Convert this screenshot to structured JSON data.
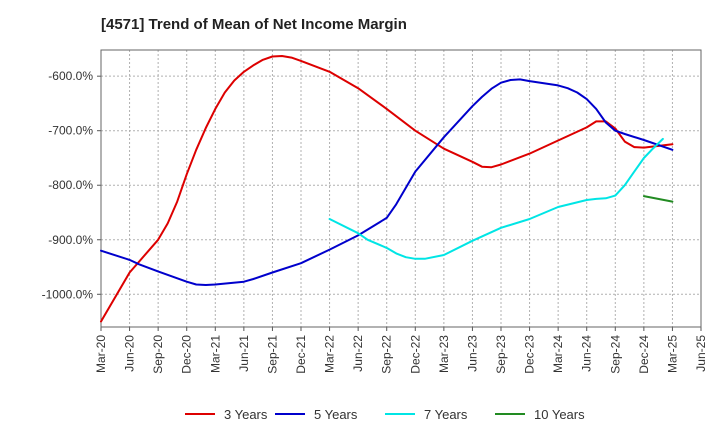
{
  "header": {
    "title": "[4571]  Trend of Mean of Net Income Margin"
  },
  "chart_data": {
    "type": "line",
    "title": "[4571]  Trend of Mean of Net Income Margin",
    "xlabel": "",
    "ylabel": "",
    "x_ticks": [
      "Mar-20",
      "Jun-20",
      "Sep-20",
      "Dec-20",
      "Mar-21",
      "Jun-21",
      "Sep-21",
      "Dec-21",
      "Mar-22",
      "Jun-22",
      "Sep-22",
      "Dec-22",
      "Mar-23",
      "Jun-23",
      "Sep-23",
      "Dec-23",
      "Mar-24",
      "Jun-24",
      "Sep-24",
      "Dec-24",
      "Mar-25",
      "Jun-25"
    ],
    "y_ticks": [
      -600,
      -700,
      -800,
      -900,
      -1000
    ],
    "y_tick_labels": [
      "-600.0%",
      "-700.0%",
      "-800.0%",
      "-900.0%",
      "-1000.0%"
    ],
    "ylim": [
      -1060,
      -552
    ],
    "grid": true,
    "legend_position": "bottom",
    "series": [
      {
        "name": "3 Years",
        "color": "#dd0000",
        "points": [
          [
            "Mar-20",
            -1050
          ],
          [
            "Jun-20",
            -960
          ],
          [
            "Jul-20",
            -940
          ],
          [
            "Sep-20",
            -900
          ],
          [
            "Oct-20",
            -870
          ],
          [
            "Nov-20",
            -830
          ],
          [
            "Dec-20",
            -780
          ],
          [
            "Jan-21",
            -735
          ],
          [
            "Feb-21",
            -695
          ],
          [
            "Mar-21",
            -660
          ],
          [
            "Apr-21",
            -630
          ],
          [
            "May-21",
            -608
          ],
          [
            "Jun-21",
            -592
          ],
          [
            "Jul-21",
            -580
          ],
          [
            "Aug-21",
            -570
          ],
          [
            "Sep-21",
            -564
          ],
          [
            "Oct-21",
            -563
          ],
          [
            "Nov-21",
            -566
          ],
          [
            "Dec-21",
            -572
          ],
          [
            "Mar-22",
            -592
          ],
          [
            "Jun-22",
            -622
          ],
          [
            "Sep-22",
            -660
          ],
          [
            "Dec-22",
            -700
          ],
          [
            "Mar-23",
            -733
          ],
          [
            "Jun-23",
            -757
          ],
          [
            "Jul-23",
            -766
          ],
          [
            "Aug-23",
            -767
          ],
          [
            "Sep-23",
            -762
          ],
          [
            "Dec-23",
            -742
          ],
          [
            "Mar-24",
            -718
          ],
          [
            "Jun-24",
            -694
          ],
          [
            "Jul-24",
            -683
          ],
          [
            "Aug-24",
            -683
          ],
          [
            "Sep-24",
            -696
          ],
          [
            "Oct-24",
            -720
          ],
          [
            "Nov-24",
            -730
          ],
          [
            "Dec-24",
            -731
          ],
          [
            "Mar-25",
            -725
          ]
        ]
      },
      {
        "name": "5 Years",
        "color": "#0000cc",
        "points": [
          [
            "Mar-20",
            -920
          ],
          [
            "Jun-20",
            -937
          ],
          [
            "Jul-20",
            -945
          ],
          [
            "Sep-20",
            -958
          ],
          [
            "Dec-20",
            -977
          ],
          [
            "Jan-21",
            -982
          ],
          [
            "Feb-21",
            -983
          ],
          [
            "Mar-21",
            -982
          ],
          [
            "Jun-21",
            -977
          ],
          [
            "Jul-21",
            -972
          ],
          [
            "Sep-21",
            -960
          ],
          [
            "Dec-21",
            -943
          ],
          [
            "Mar-22",
            -918
          ],
          [
            "Jun-22",
            -892
          ],
          [
            "Sep-22",
            -860
          ],
          [
            "Oct-22",
            -835
          ],
          [
            "Dec-22",
            -775
          ],
          [
            "Mar-23",
            -712
          ],
          [
            "Jun-23",
            -655
          ],
          [
            "Jul-23",
            -638
          ],
          [
            "Aug-23",
            -623
          ],
          [
            "Sep-23",
            -612
          ],
          [
            "Oct-23",
            -607
          ],
          [
            "Nov-23",
            -606
          ],
          [
            "Dec-23",
            -609
          ],
          [
            "Mar-24",
            -617
          ],
          [
            "Apr-24",
            -622
          ],
          [
            "May-24",
            -630
          ],
          [
            "Jun-24",
            -642
          ],
          [
            "Jul-24",
            -660
          ],
          [
            "Aug-24",
            -685
          ],
          [
            "Sep-24",
            -700
          ],
          [
            "Oct-24",
            -706
          ],
          [
            "Dec-24",
            -717
          ],
          [
            "Mar-25",
            -735
          ]
        ]
      },
      {
        "name": "7 Years",
        "color": "#00e5e5",
        "points": [
          [
            "Mar-22",
            -862
          ],
          [
            "Jun-22",
            -888
          ],
          [
            "Jul-22",
            -900
          ],
          [
            "Sep-22",
            -915
          ],
          [
            "Oct-22",
            -925
          ],
          [
            "Nov-22",
            -932
          ],
          [
            "Dec-22",
            -935
          ],
          [
            "Jan-23",
            -935
          ],
          [
            "Mar-23",
            -928
          ],
          [
            "Jun-23",
            -902
          ],
          [
            "Sep-23",
            -878
          ],
          [
            "Dec-23",
            -862
          ],
          [
            "Mar-24",
            -840
          ],
          [
            "Jun-24",
            -827
          ],
          [
            "Jul-24",
            -825
          ],
          [
            "Aug-24",
            -824
          ],
          [
            "Sep-24",
            -819
          ],
          [
            "Oct-24",
            -800
          ],
          [
            "Nov-24",
            -775
          ],
          [
            "Dec-24",
            -750
          ],
          [
            "Jan-25",
            -732
          ],
          [
            "Feb-25",
            -715
          ]
        ]
      },
      {
        "name": "10 Years",
        "color": "#228b22",
        "points": [
          [
            "Dec-24",
            -820
          ],
          [
            "Mar-25",
            -830
          ]
        ]
      }
    ]
  }
}
